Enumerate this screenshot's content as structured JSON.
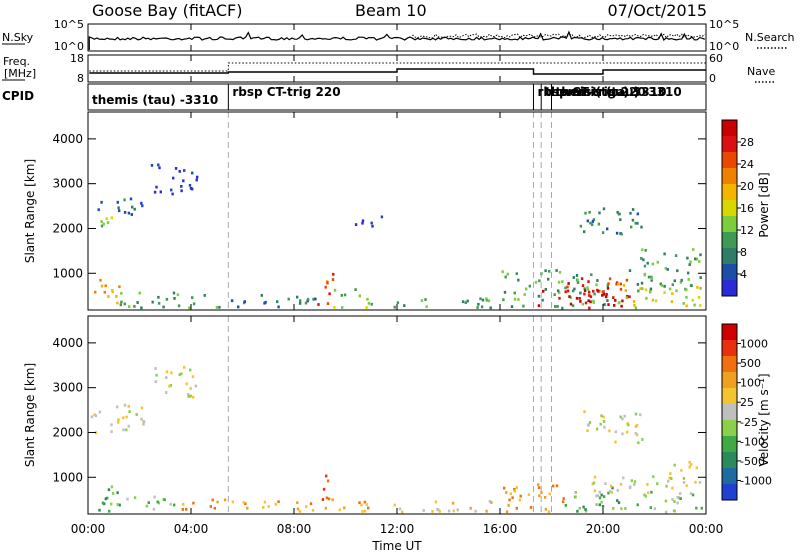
{
  "header": {
    "station": "Goose Bay (fitACF)",
    "beam": "Beam 10",
    "date": "07/Oct/2015"
  },
  "noise_panel": {
    "left_label": "N.Sky",
    "left_ticks": [
      "10^5",
      "10^0"
    ],
    "right_ticks": [
      "10^5",
      "10^0"
    ],
    "right_label": "N.Search"
  },
  "freq_panel": {
    "left_label_1": "Freq.",
    "left_label_2": "[MHz]",
    "left_ticks": [
      "18",
      "8"
    ],
    "right_ticks": [
      "60",
      "0"
    ],
    "right_label": "Nave"
  },
  "cpid_panel": {
    "label": "CPID",
    "segments": [
      {
        "label": "themis (tau) -3310",
        "start": 0.0
      },
      {
        "label": "rbsp CT-trig 220",
        "start": 5.45
      },
      {
        "label": "rbsp CT-trig 220",
        "start": 17.3
      },
      {
        "label": "themis (tau) 3310",
        "start": 17.6
      },
      {
        "label": "themis (tau) -3310",
        "start": 18.0
      }
    ]
  },
  "x_axis": {
    "label": "Time UT",
    "ticks": [
      "00:00",
      "04:00",
      "08:00",
      "12:00",
      "16:00",
      "20:00",
      "00:00"
    ],
    "range_hours": [
      0,
      24
    ]
  },
  "chart_data": [
    {
      "type": "heatmap",
      "title": "",
      "xlabel": "Time UT",
      "ylabel": "Slant Range [km]",
      "xlim": [
        0,
        24
      ],
      "ylim": [
        180,
        4600
      ],
      "yticks": [
        1000,
        2000,
        3000,
        4000
      ],
      "colorbar": {
        "label": "Power [dB]",
        "ticks": [
          "28",
          "24",
          "20",
          "16",
          "12",
          "8",
          "4"
        ],
        "colors": [
          "#2b2bd6",
          "#1d4ea6",
          "#2e7d64",
          "#3f9a55",
          "#7ccd3c",
          "#d8d800",
          "#f4b400",
          "#f08000",
          "#e84800",
          "#dc1010",
          "#c80000"
        ]
      },
      "echo_regions": [
        {
          "t0": 0.1,
          "t1": 1.35,
          "r0": 2000,
          "r1": 2300,
          "level": 4
        },
        {
          "t0": 0.3,
          "t1": 1.6,
          "r0": 2350,
          "r1": 2700,
          "level": 2
        },
        {
          "t0": 1.6,
          "t1": 2.2,
          "r0": 2200,
          "r1": 2700,
          "level": 1
        },
        {
          "t0": 2.4,
          "t1": 4.2,
          "r0": 2800,
          "r1": 3500,
          "level": 0
        },
        {
          "t0": 0.2,
          "t1": 1.2,
          "r0": 250,
          "r1": 900,
          "level": 6
        },
        {
          "t0": 1.2,
          "t1": 5.3,
          "r0": 250,
          "r1": 600,
          "level": 3
        },
        {
          "t0": 5.5,
          "t1": 9.0,
          "r0": 250,
          "r1": 550,
          "level": 2
        },
        {
          "t0": 8.9,
          "t1": 9.5,
          "r0": 300,
          "r1": 1100,
          "level": 8
        },
        {
          "t0": 9.5,
          "t1": 11.0,
          "r0": 250,
          "r1": 700,
          "level": 4
        },
        {
          "t0": 10.3,
          "t1": 11.6,
          "r0": 2050,
          "r1": 2300,
          "level": 0
        },
        {
          "t0": 11.5,
          "t1": 15.8,
          "r0": 250,
          "r1": 500,
          "level": 3
        },
        {
          "t0": 16.0,
          "t1": 20.2,
          "r0": 250,
          "r1": 1100,
          "level": 3
        },
        {
          "t0": 17.4,
          "t1": 20.8,
          "r0": 250,
          "r1": 700,
          "level": 10
        },
        {
          "t0": 18.5,
          "t1": 21.0,
          "r0": 400,
          "r1": 950,
          "level": 9
        },
        {
          "t0": 20.5,
          "t1": 23.8,
          "r0": 250,
          "r1": 800,
          "level": 5
        },
        {
          "t0": 21.0,
          "t1": 23.8,
          "r0": 600,
          "r1": 1600,
          "level": 3
        },
        {
          "t0": 19.0,
          "t1": 21.5,
          "r0": 1800,
          "r1": 2500,
          "level": 2
        }
      ]
    },
    {
      "type": "heatmap",
      "title": "",
      "xlabel": "Time UT",
      "ylabel": "Slant Range [km]",
      "xlim": [
        0,
        24
      ],
      "ylim": [
        180,
        4600
      ],
      "yticks": [
        1000,
        2000,
        3000,
        4000
      ],
      "colorbar": {
        "label": "Velocity [m s⁻¹]",
        "ticks": [
          "1000",
          "500",
          "100",
          "25",
          "-25",
          "-100",
          "-500",
          "-1000"
        ],
        "colors": [
          "#2040d0",
          "#1f6aa0",
          "#2a8a5a",
          "#40a845",
          "#8bd04a",
          "#bfbfbf",
          "#f4c430",
          "#f0a020",
          "#f07010",
          "#e83010",
          "#d00000"
        ]
      },
      "echo_regions": [
        {
          "t0": 0.1,
          "t1": 1.6,
          "r0": 2000,
          "r1": 2700,
          "level": 5
        },
        {
          "t0": 1.6,
          "t1": 2.2,
          "r0": 2200,
          "r1": 2700,
          "level": 5
        },
        {
          "t0": 2.4,
          "t1": 4.2,
          "r0": 2800,
          "r1": 3500,
          "level": 5
        },
        {
          "t0": 0.2,
          "t1": 1.4,
          "r0": 250,
          "r1": 900,
          "level": 3
        },
        {
          "t0": 1.4,
          "t1": 3.5,
          "r0": 250,
          "r1": 600,
          "level": 4
        },
        {
          "t0": 3.5,
          "t1": 5.3,
          "r0": 250,
          "r1": 550,
          "level": 7
        },
        {
          "t0": 5.5,
          "t1": 9.0,
          "r0": 250,
          "r1": 500,
          "level": 7
        },
        {
          "t0": 8.9,
          "t1": 9.5,
          "r0": 300,
          "r1": 1100,
          "level": 8
        },
        {
          "t0": 9.5,
          "t1": 11.0,
          "r0": 250,
          "r1": 600,
          "level": 7
        },
        {
          "t0": 11.5,
          "t1": 15.8,
          "r0": 250,
          "r1": 500,
          "level": 6
        },
        {
          "t0": 16.0,
          "t1": 18.5,
          "r0": 250,
          "r1": 900,
          "level": 7
        },
        {
          "t0": 18.5,
          "t1": 21.0,
          "r0": 250,
          "r1": 800,
          "level": 3
        },
        {
          "t0": 19.5,
          "t1": 22.5,
          "r0": 600,
          "r1": 1100,
          "level": 5
        },
        {
          "t0": 21.0,
          "t1": 23.8,
          "r0": 250,
          "r1": 700,
          "level": 4
        },
        {
          "t0": 22.5,
          "t1": 23.8,
          "r0": 700,
          "r1": 1400,
          "level": 5
        },
        {
          "t0": 19.0,
          "t1": 21.5,
          "r0": 1800,
          "r1": 2500,
          "level": 5
        }
      ]
    }
  ]
}
